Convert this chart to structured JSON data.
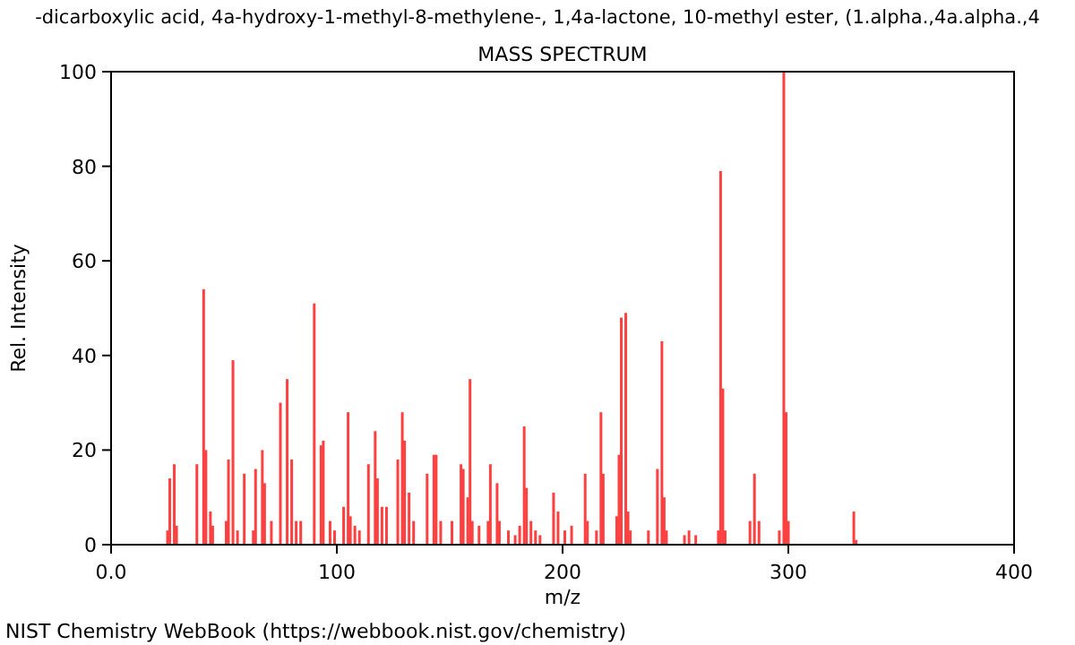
{
  "chart_data": {
    "type": "bar",
    "title": "-dicarboxylic acid, 4a-hydroxy-1-methyl-8-methylene-, 1,4a-lactone, 10-methyl ester, (1.alpha.,4a.alpha.,4",
    "subtitle": "MASS SPECTRUM",
    "xlabel": "m/z",
    "ylabel": "Rel. Intensity",
    "annotations": [
      "NIST Chemistry WebBook (https://webbook.nist.gov/chemistry)"
    ],
    "x": [
      25,
      26,
      28,
      29,
      38,
      41,
      42,
      44,
      45,
      51,
      52,
      54,
      56,
      59,
      63,
      64,
      67,
      68,
      71,
      75,
      78,
      80,
      82,
      84,
      90,
      93,
      94,
      97,
      99,
      103,
      105,
      106,
      108,
      110,
      114,
      117,
      118,
      120,
      122,
      127,
      129,
      130,
      132,
      134,
      140,
      143,
      144,
      146,
      151,
      155,
      156,
      158,
      159,
      160,
      163,
      167,
      168,
      171,
      172,
      176,
      179,
      181,
      183,
      184,
      186,
      188,
      190,
      196,
      198,
      201,
      204,
      210,
      211,
      215,
      217,
      218,
      224,
      225,
      226,
      228,
      229,
      230,
      238,
      242,
      244,
      245,
      246,
      254,
      256,
      259,
      269,
      270,
      271,
      272,
      283,
      285,
      287,
      296,
      298,
      299,
      300,
      329,
      330
    ],
    "values": [
      3,
      14,
      17,
      4,
      17,
      54,
      20,
      7,
      4,
      5,
      18,
      39,
      3,
      15,
      3,
      16,
      20,
      13,
      5,
      30,
      35,
      18,
      5,
      5,
      51,
      21,
      22,
      5,
      3,
      8,
      28,
      6,
      4,
      3,
      17,
      24,
      14,
      8,
      8,
      18,
      28,
      22,
      11,
      5,
      15,
      19,
      19,
      5,
      5,
      17,
      16,
      10,
      35,
      5,
      4,
      5,
      17,
      13,
      5,
      3,
      2,
      4,
      25,
      12,
      5,
      3,
      2,
      11,
      7,
      3,
      4,
      15,
      5,
      3,
      28,
      15,
      6,
      19,
      48,
      49,
      7,
      3,
      3,
      16,
      43,
      10,
      3,
      2,
      3,
      2,
      3,
      79,
      33,
      3,
      5,
      15,
      5,
      3,
      100,
      28,
      5,
      7,
      1
    ],
    "color": "#ff4040",
    "xlim": [
      0,
      400
    ],
    "xticks": [
      {
        "value": 0,
        "label": "0.0"
      },
      100,
      200,
      300,
      400
    ],
    "ylim": [
      0,
      100
    ],
    "yticks": [
      0,
      20,
      40,
      60,
      80,
      100
    ]
  }
}
